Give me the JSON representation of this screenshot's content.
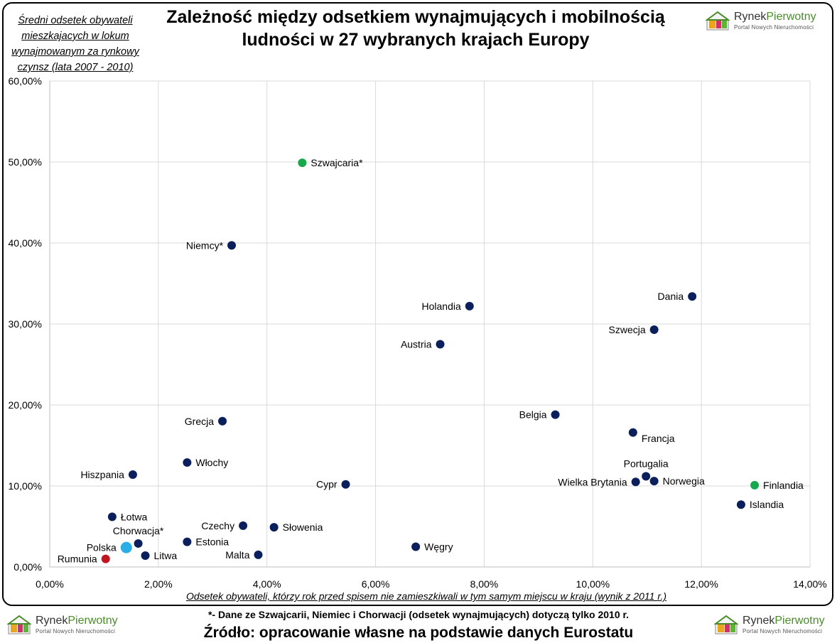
{
  "title": "Zależność między odsetkiem wynajmujących i mobilnością ludności w 27 wybranych krajach Europy",
  "logo": {
    "name_a": "Rynek",
    "name_b": "Pierwotny",
    "subtitle": "Portal Nowych Nieruchomości"
  },
  "footnote": "*- Dane ze Szwajcarii, Niemiec i Chorwacji (odsetek wynajmujących) dotyczą tylko 2010 r.",
  "source": "Źródło: opracowanie własne na podstawie danych Eurostatu",
  "colors": {
    "navy": "#0a1f5c",
    "green": "#17a84c",
    "lightblue": "#29aee6",
    "red": "#c0141e"
  },
  "chart_data": {
    "type": "scatter",
    "ylabel": "Średni odsetek obywateli mieszkajacych w lokum wynajmowanym za rynkowy czynsz (lata 2007 - 2010)",
    "xlabel": "Odsetek obywateli, którzy rok przed spisem nie zamieszkiwali w tym samym miejscu w kraju (wynik z 2011 r.)",
    "xlim": [
      0,
      14
    ],
    "ylim": [
      0,
      60
    ],
    "x_ticks": [
      "0,00%",
      "2,00%",
      "4,00%",
      "6,00%",
      "8,00%",
      "10,00%",
      "12,00%",
      "14,00%"
    ],
    "y_ticks": [
      "0,00%",
      "10,00%",
      "20,00%",
      "30,00%",
      "40,00%",
      "50,00%",
      "60,00%"
    ],
    "grid": true,
    "points": [
      {
        "label": "Szwajcaria*",
        "x": 4.65,
        "y": 49.9,
        "color": "green",
        "pos": "right"
      },
      {
        "label": "Niemcy*",
        "x": 3.35,
        "y": 39.7,
        "color": "navy",
        "pos": "left"
      },
      {
        "label": "Dania",
        "x": 11.83,
        "y": 33.4,
        "color": "navy",
        "pos": "left"
      },
      {
        "label": "Holandia",
        "x": 7.73,
        "y": 32.2,
        "color": "navy",
        "pos": "left"
      },
      {
        "label": "Szwecja",
        "x": 11.13,
        "y": 29.3,
        "color": "navy",
        "pos": "left"
      },
      {
        "label": "Austria",
        "x": 7.19,
        "y": 27.5,
        "color": "navy",
        "pos": "left"
      },
      {
        "label": "Belgia",
        "x": 9.31,
        "y": 18.8,
        "color": "navy",
        "pos": "left"
      },
      {
        "label": "Grecja",
        "x": 3.18,
        "y": 18.0,
        "color": "navy",
        "pos": "left"
      },
      {
        "label": "Francja",
        "x": 10.74,
        "y": 16.6,
        "color": "navy",
        "pos": "right-below"
      },
      {
        "label": "Włochy",
        "x": 2.53,
        "y": 12.9,
        "color": "navy",
        "pos": "right"
      },
      {
        "label": "Hiszpania",
        "x": 1.53,
        "y": 11.4,
        "color": "navy",
        "pos": "left"
      },
      {
        "label": "Portugalia",
        "x": 10.98,
        "y": 11.2,
        "color": "navy",
        "pos": "above"
      },
      {
        "label": "Norwegia",
        "x": 11.13,
        "y": 10.6,
        "color": "navy",
        "pos": "right"
      },
      {
        "label": "Wielka Brytania",
        "x": 10.79,
        "y": 10.5,
        "color": "navy",
        "pos": "left"
      },
      {
        "label": "Cypr",
        "x": 5.45,
        "y": 10.2,
        "color": "navy",
        "pos": "left"
      },
      {
        "label": "Finlandia",
        "x": 12.98,
        "y": 10.1,
        "color": "green",
        "pos": "right"
      },
      {
        "label": "Islandia",
        "x": 12.73,
        "y": 7.7,
        "color": "navy",
        "pos": "right"
      },
      {
        "label": "Łotwa",
        "x": 1.15,
        "y": 6.2,
        "color": "navy",
        "pos": "right"
      },
      {
        "label": "Czechy",
        "x": 3.56,
        "y": 5.1,
        "color": "navy",
        "pos": "left"
      },
      {
        "label": "Słowenia",
        "x": 4.13,
        "y": 4.9,
        "color": "navy",
        "pos": "right"
      },
      {
        "label": "Chorwacja*",
        "x": 1.63,
        "y": 2.9,
        "color": "navy",
        "pos": "above"
      },
      {
        "label": "Estonia",
        "x": 2.53,
        "y": 3.1,
        "color": "navy",
        "pos": "right"
      },
      {
        "label": "Węgry",
        "x": 6.74,
        "y": 2.5,
        "color": "navy",
        "pos": "right"
      },
      {
        "label": "Polska",
        "x": 1.41,
        "y": 2.4,
        "color": "lightblue",
        "pos": "left",
        "big": true
      },
      {
        "label": "Malta",
        "x": 3.84,
        "y": 1.5,
        "color": "navy",
        "pos": "left"
      },
      {
        "label": "Litwa",
        "x": 1.76,
        "y": 1.4,
        "color": "navy",
        "pos": "right"
      },
      {
        "label": "Rumunia",
        "x": 1.03,
        "y": 1.0,
        "color": "red",
        "pos": "left"
      }
    ]
  }
}
